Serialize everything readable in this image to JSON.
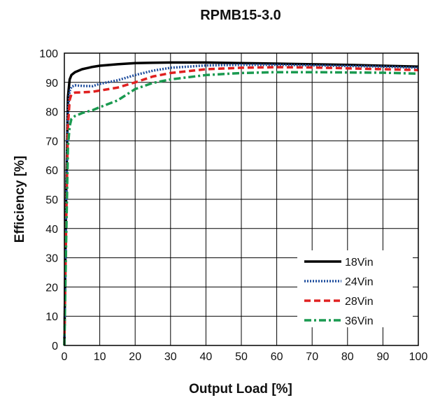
{
  "chart_data": {
    "type": "line",
    "title": "RPMB15-3.0",
    "xlabel": "Output Load [%]",
    "ylabel": "Efficiency [%]",
    "xlim": [
      0,
      100
    ],
    "ylim": [
      0,
      100
    ],
    "xticks": [
      "0",
      "10",
      "20",
      "30",
      "40",
      "50",
      "60",
      "70",
      "80",
      "90",
      "100"
    ],
    "yticks": [
      "0",
      "10",
      "20",
      "30",
      "40",
      "50",
      "60",
      "70",
      "80",
      "90",
      "100"
    ],
    "grid": true,
    "legend_position": "lower-right",
    "series": [
      {
        "name": "18Vin",
        "color": "#000000",
        "style": "solid",
        "x": [
          0,
          0.5,
          1,
          1.5,
          2,
          3,
          5,
          8,
          10,
          15,
          20,
          25,
          30,
          40,
          50,
          60,
          70,
          80,
          90,
          100
        ],
        "y": [
          0,
          50,
          85,
          91,
          92.5,
          93.5,
          94.5,
          95.3,
          95.7,
          96.2,
          96.6,
          96.7,
          96.8,
          96.8,
          96.6,
          96.4,
          96.2,
          96,
          95.7,
          95.4
        ]
      },
      {
        "name": "24Vin",
        "color": "#1f4e9e",
        "style": "dotted",
        "x": [
          0,
          0.5,
          1,
          1.5,
          2,
          3,
          5,
          8,
          10,
          15,
          20,
          25,
          30,
          40,
          50,
          60,
          70,
          80,
          90,
          100
        ],
        "y": [
          0,
          45,
          80,
          87,
          88.5,
          89,
          88.8,
          88.7,
          89.5,
          90.7,
          92.5,
          94,
          95,
          95.8,
          96,
          96,
          95.8,
          95.6,
          95.4,
          95
        ]
      },
      {
        "name": "28Vin",
        "color": "#e02020",
        "style": "dashed",
        "x": [
          0,
          0.5,
          1,
          1.5,
          2,
          3,
          5,
          8,
          10,
          15,
          20,
          25,
          30,
          40,
          50,
          60,
          70,
          80,
          90,
          100
        ],
        "y": [
          0,
          40,
          75,
          84,
          86,
          86.5,
          86.6,
          86.8,
          87.2,
          88.2,
          90,
          92,
          93.2,
          94.5,
          95,
          95.2,
          95.1,
          94.8,
          94.5,
          94.2
        ]
      },
      {
        "name": "36Vin",
        "color": "#1a9a50",
        "style": "dashdot",
        "x": [
          0,
          0.5,
          1,
          1.5,
          2,
          3,
          5,
          8,
          10,
          15,
          20,
          25,
          30,
          40,
          50,
          60,
          70,
          80,
          90,
          100
        ],
        "y": [
          0,
          35,
          68,
          75,
          77.5,
          78.5,
          79.5,
          80.5,
          81.5,
          83.8,
          87.7,
          89.8,
          91,
          92.5,
          93.2,
          93.5,
          93.5,
          93.4,
          93.3,
          93
        ]
      }
    ]
  }
}
